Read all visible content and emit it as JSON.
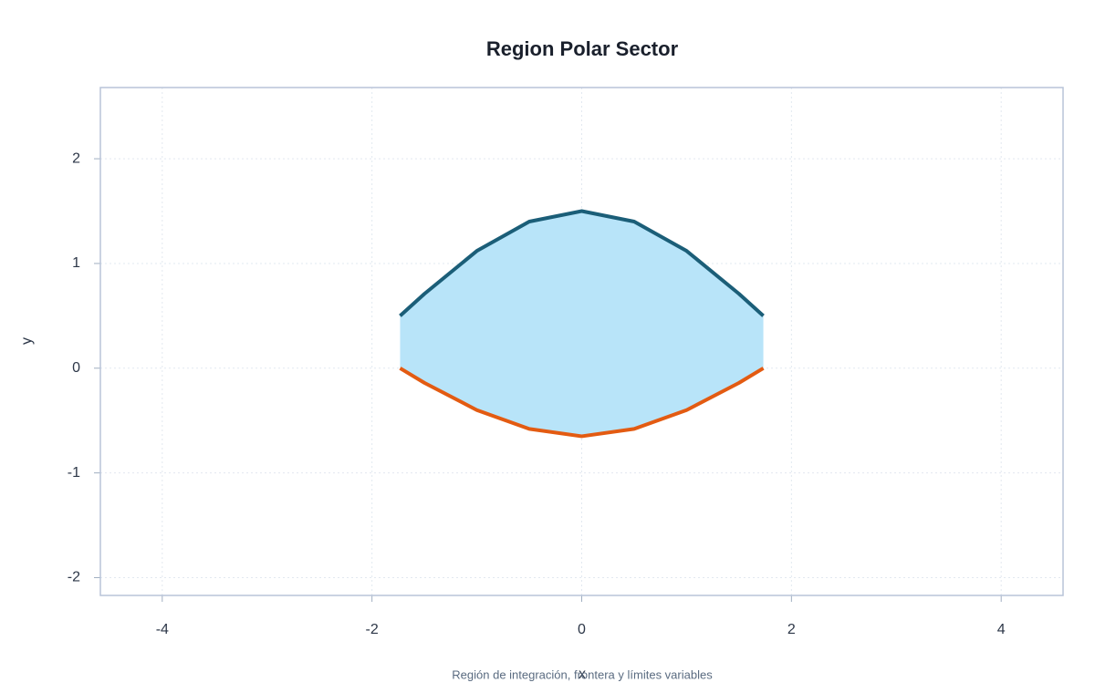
{
  "chart_data": {
    "type": "line",
    "title": "Region Polar Sector",
    "xlabel": "x",
    "ylabel": "y",
    "caption": "Región de integración, frontera y límites variables",
    "x": [
      -1.732,
      -1.5,
      -1.0,
      -0.5,
      0,
      0.5,
      1.0,
      1.5,
      1.732
    ],
    "series": [
      {
        "color": "#1b5e78",
        "values": [
          0.5,
          0.71,
          1.12,
          1.4,
          1.5,
          1.4,
          1.12,
          0.71,
          0.5
        ]
      },
      {
        "color": "#e35b12",
        "values": [
          0,
          -0.14,
          -0.4,
          -0.58,
          -0.65,
          -0.58,
          -0.4,
          -0.14,
          0
        ]
      }
    ],
    "fill_color": "#b8e4f9",
    "xlim": [
      -4.59,
      4.59
    ],
    "ylim": [
      -2.17,
      2.68
    ],
    "xticks": [
      -4,
      -2,
      0,
      2,
      4
    ],
    "yticks": [
      -2,
      -1,
      0,
      1,
      2
    ],
    "grid": true
  }
}
